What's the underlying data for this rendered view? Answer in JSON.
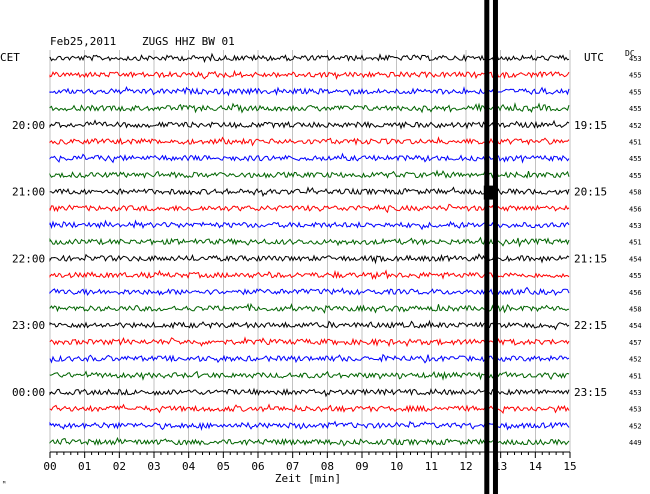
{
  "header": {
    "date": "Feb25,2011",
    "station": "ZUGS HHZ BW 01",
    "left_tz": "CET",
    "right_tz": "UTC",
    "dc_label": "DC"
  },
  "chart_data": {
    "type": "line",
    "title": "Feb25,2011   ZUGS HHZ BW 01",
    "xlabel": "Zeit [min]",
    "x_range": [
      0,
      15
    ],
    "x_ticks": [
      "00",
      "01",
      "02",
      "03",
      "04",
      "05",
      "06",
      "07",
      "08",
      "09",
      "10",
      "11",
      "12",
      "13",
      "14",
      "15"
    ],
    "rows_per_hour": 4,
    "trace_colors": [
      "#000000",
      "#ff0000",
      "#0000ff",
      "#006400"
    ],
    "left_time_labels": [
      {
        "row": 4,
        "label": "20:00"
      },
      {
        "row": 8,
        "label": "21:00"
      },
      {
        "row": 12,
        "label": "22:00"
      },
      {
        "row": 16,
        "label": "23:00"
      },
      {
        "row": 20,
        "label": "00:00"
      }
    ],
    "right_time_labels": [
      {
        "row": 4,
        "label": "19:15"
      },
      {
        "row": 8,
        "label": "20:15"
      },
      {
        "row": 12,
        "label": "21:15"
      },
      {
        "row": 16,
        "label": "22:15"
      },
      {
        "row": 20,
        "label": "23:15"
      }
    ],
    "dc_offsets": [
      453,
      455,
      455,
      455,
      452,
      451,
      455,
      455,
      458,
      456,
      453,
      451,
      454,
      455,
      456,
      458,
      454,
      457,
      452,
      451,
      453,
      453,
      452,
      449
    ],
    "event_lines_min": [
      12.6,
      12.85
    ],
    "grid": true
  },
  "footer": {
    "corner_mark": "ᴹ"
  }
}
